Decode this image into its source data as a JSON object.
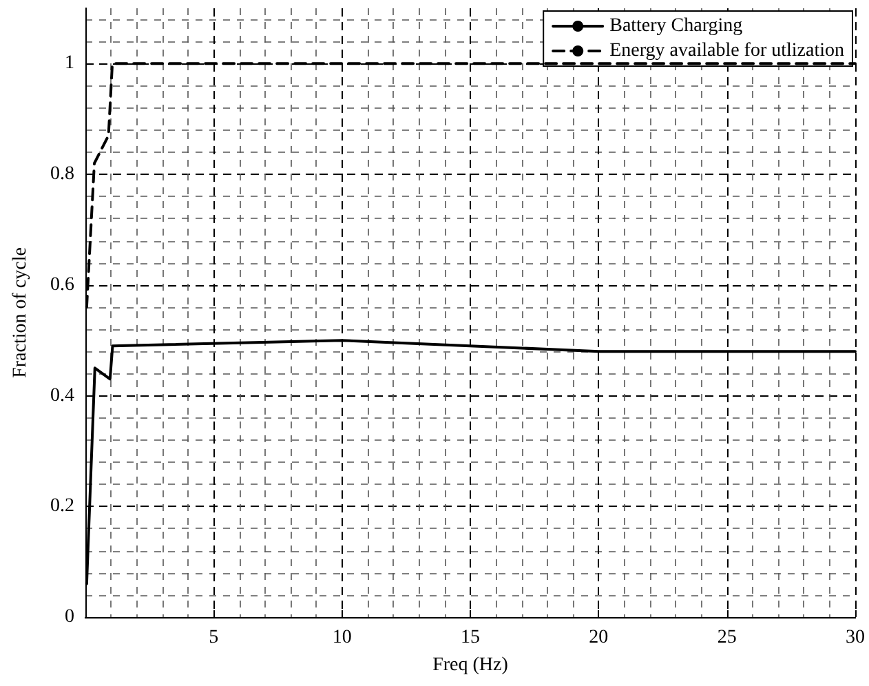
{
  "chart_data": {
    "type": "line",
    "xlabel": "Freq (Hz)",
    "ylabel": "Fraction of cycle",
    "xlim": [
      0,
      30
    ],
    "xticks": [
      {
        "value": 0,
        "label": null
      },
      5,
      10,
      15,
      20,
      25,
      30
    ],
    "ylim": [
      0,
      1.1
    ],
    "yticks": [
      0,
      0.2,
      0.4,
      0.6,
      0.8,
      1
    ],
    "grid": true,
    "legend": "top right",
    "marker": "none",
    "series": [
      {
        "name": "Battery Charging",
        "color": "#000000",
        "line_style": "solid",
        "x": [
          0.05,
          0.37,
          0.96,
          1.06,
          10,
          20,
          30
        ],
        "values": [
          0.06,
          0.45,
          0.43,
          0.49,
          0.5,
          0.48,
          0.48
        ]
      },
      {
        "name": "Energy available for utlization",
        "color": "#000000",
        "line_style": "dashed",
        "x": [
          0.05,
          0.35,
          0.9,
          1.05,
          30
        ],
        "values": [
          0.56,
          0.82,
          0.87,
          1.0,
          1.0
        ]
      }
    ]
  }
}
